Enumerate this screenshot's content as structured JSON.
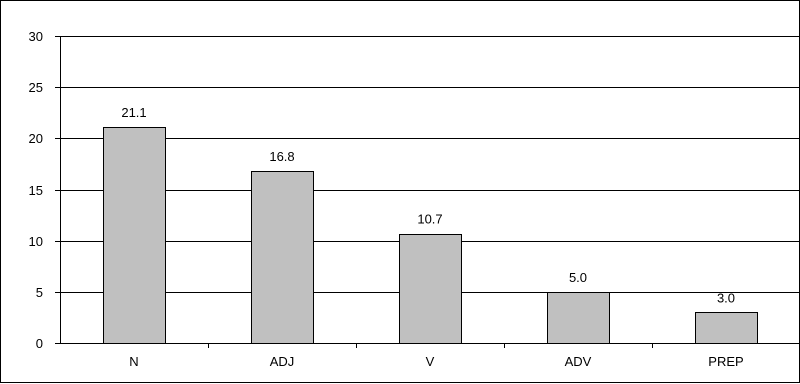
{
  "chart_data": {
    "type": "bar",
    "categories": [
      "N",
      "ADJ",
      "V",
      "ADV",
      "PREP"
    ],
    "values": [
      21.1,
      16.8,
      10.7,
      5.0,
      3.0
    ],
    "value_labels": [
      "21.1",
      "16.8",
      "10.7",
      "5.0",
      "3.0"
    ],
    "title": "",
    "xlabel": "",
    "ylabel": "",
    "ylim": [
      0,
      30
    ],
    "yticks": [
      "0",
      "5",
      "10",
      "15",
      "20",
      "25",
      "30"
    ],
    "grid": true,
    "legend": "none",
    "bar_color": "#c0c0c0",
    "bar_edge_color": "#000000",
    "gridline_color": "#000000"
  }
}
